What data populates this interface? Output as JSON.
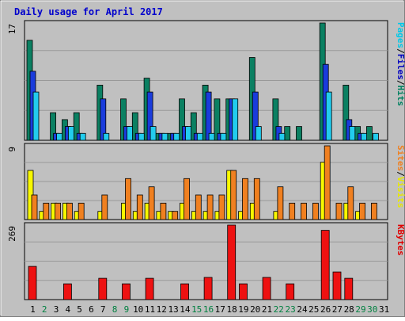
{
  "chart_data": {
    "type": "bar",
    "title": "Daily usage for April 2017",
    "days": [
      "1",
      "2",
      "3",
      "4",
      "5",
      "6",
      "7",
      "8",
      "9",
      "10",
      "11",
      "12",
      "13",
      "14",
      "15",
      "16",
      "17",
      "18",
      "19",
      "20",
      "21",
      "22",
      "23",
      "24",
      "25",
      "26",
      "27",
      "28",
      "29",
      "30",
      "31"
    ],
    "weekend_days": [
      "2",
      "8",
      "9",
      "15",
      "16",
      "22",
      "23",
      "29",
      "30"
    ],
    "panels": [
      {
        "id": "pages-files-hits",
        "ymax_label": "17",
        "ymax": 17,
        "legend": [
          {
            "text": "Pages",
            "color": "#00c8e8"
          },
          {
            "text": "/",
            "color": "#000000"
          },
          {
            "text": "Files",
            "color": "#0000c0"
          },
          {
            "text": "/",
            "color": "#000000"
          },
          {
            "text": "Hits",
            "color": "#008060"
          }
        ],
        "series": [
          {
            "name": "Hits",
            "color": "#0b8062",
            "values": [
              14.5,
              0,
              4,
              3,
              4,
              0,
              8,
              0,
              6,
              4,
              9,
              1,
              1,
              6,
              4,
              8,
              6,
              6,
              0,
              12,
              0,
              6,
              2,
              2,
              0,
              17,
              0,
              8,
              2,
              2,
              0
            ]
          },
          {
            "name": "Files",
            "color": "#1a3cdc",
            "values": [
              10,
              0,
              1,
              2,
              1,
              0,
              6,
              0,
              2,
              1,
              7,
              1,
              1,
              2,
              1,
              7,
              1,
              6,
              0,
              7,
              0,
              2,
              0,
              0,
              0,
              11,
              0,
              3,
              1,
              0,
              0
            ]
          },
          {
            "name": "Pages",
            "color": "#22ccee",
            "values": [
              7,
              0,
              1,
              2,
              1,
              0,
              1,
              0,
              2,
              1,
              2,
              1,
              1,
              2,
              1,
              1,
              1,
              6,
              0,
              2,
              0,
              1,
              0,
              0,
              0,
              7,
              0,
              2,
              1,
              1,
              0
            ]
          }
        ]
      },
      {
        "id": "sites-visits",
        "ymax_label": "9",
        "ymax": 9,
        "legend": [
          {
            "text": "Sites",
            "color": "#f08020"
          },
          {
            "text": "/",
            "color": "#000000"
          },
          {
            "text": "Visits",
            "color": "#e8e800"
          }
        ],
        "series": [
          {
            "name": "Visits",
            "color": "#f8f800",
            "values": [
              6,
              1,
              2,
              2,
              1,
              0,
              1,
              0,
              2,
              1,
              2,
              1,
              1,
              2,
              1,
              1,
              1,
              6,
              1,
              2,
              0,
              1,
              0,
              0,
              0,
              7,
              0,
              2,
              1,
              0,
              0
            ]
          },
          {
            "name": "Sites",
            "color": "#f08020",
            "values": [
              3,
              2,
              2,
              2,
              2,
              0,
              3,
              0,
              5,
              3,
              4,
              2,
              1,
              5,
              3,
              3,
              3,
              6,
              5,
              5,
              0,
              4,
              2,
              2,
              2,
              9,
              2,
              4,
              2,
              2,
              0
            ]
          }
        ]
      },
      {
        "id": "kbytes",
        "ymax_label": "269",
        "ymax": 269,
        "legend": [
          {
            "text": "KBytes",
            "color": "#e00000"
          }
        ],
        "series": [
          {
            "name": "KBytes",
            "color": "#ee1111",
            "values": [
              120,
              0,
              0,
              57,
              0,
              0,
              77,
              0,
              57,
              0,
              77,
              0,
              0,
              57,
              0,
              80,
              0,
              269,
              57,
              0,
              80,
              0,
              57,
              0,
              0,
              250,
              100,
              77,
              0,
              0,
              0
            ]
          }
        ]
      }
    ]
  }
}
